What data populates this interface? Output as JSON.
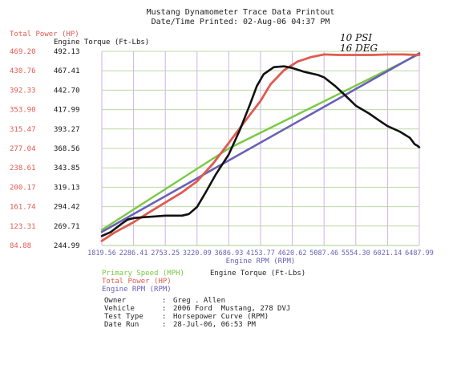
{
  "header": {
    "title": "Mustang Dynamometer Trace Data Printout",
    "printed": "Date/Time Printed: 02-Aug-06 04:37 PM"
  },
  "annotation": {
    "line1": "10 PSI",
    "line2": "16 DEG"
  },
  "colors": {
    "power": "#e05a50",
    "torque": "#111111",
    "speed": "#7ac943",
    "rpm": "#6a60b8",
    "grid_h": "#bcd8a4",
    "grid_v": "#d3b2e6"
  },
  "chart_data": {
    "type": "line",
    "x_axis_label": "Engine RPM (RPM)",
    "x_ticks": [
      "1819.56",
      "2286.41",
      "2753.25",
      "3220.09",
      "3686.93",
      "4153.77",
      "4620.62",
      "5087.46",
      "5554.30",
      "6021.14",
      "6487.99"
    ],
    "xlim": [
      1819.56,
      6487.99
    ],
    "left_axis": {
      "label": "Total Power (HP)",
      "ticks": [
        "469.20",
        "430.76",
        "392.33",
        "353.90",
        "315.47",
        "277.04",
        "238.61",
        "200.17",
        "161.74",
        "123.31",
        "84.88"
      ],
      "ylim": [
        84.88,
        469.2
      ]
    },
    "right_axis": {
      "label": "Engine Torque (Ft-Lbs)",
      "ticks": [
        "492.13",
        "467.41",
        "442.70",
        "417.99",
        "393.27",
        "368.56",
        "343.85",
        "319.13",
        "294.42",
        "269.71",
        "244.99"
      ],
      "ylim": [
        244.99,
        492.13
      ]
    },
    "series": [
      {
        "name": "Total Power (HP)",
        "axis": "left",
        "x": [
          1819.56,
          2000,
          2286,
          2500,
          2753,
          3000,
          3220,
          3450,
          3687,
          3920,
          4154,
          4300,
          4500,
          4700,
          4900,
          5087,
          5300,
          5554,
          5800,
          6021,
          6250,
          6488
        ],
        "y": [
          94,
          110,
          131,
          149,
          170,
          190,
          212,
          246,
          288,
          330,
          371,
          404,
          432,
          449,
          458,
          463,
          462,
          462,
          462,
          463,
          463,
          462
        ]
      },
      {
        "name": "Engine Torque (Ft-Lbs)",
        "axis": "right",
        "x": [
          1819.56,
          1950,
          2100,
          2200,
          2300,
          2450,
          2600,
          2753,
          2850,
          3000,
          3100,
          3220,
          3350,
          3500,
          3687,
          3850,
          4000,
          4100,
          4200,
          4350,
          4500,
          4620,
          4800,
          5000,
          5087,
          5250,
          5400,
          5554,
          5750,
          5900,
          6021,
          6200,
          6350,
          6420,
          6460,
          6488
        ],
        "y": [
          257,
          262,
          272,
          278,
          280,
          281,
          282,
          283,
          283,
          283,
          285,
          294,
          313,
          336,
          361,
          392,
          425,
          448,
          463,
          472,
          473,
          471,
          466,
          462,
          459,
          448,
          436,
          423,
          413,
          404,
          397,
          390,
          382,
          374,
          372,
          370
        ]
      },
      {
        "name": "Primary Speed (MPH)",
        "axis": "none",
        "x": [
          1819.56,
          3686.93,
          6487.99
        ],
        "y_frac": [
          0.08,
          0.5,
          0.985
        ]
      },
      {
        "name": "Engine RPM (RPM)",
        "axis": "none",
        "x": [
          1819.56,
          6487.99
        ],
        "y_frac": [
          0.07,
          0.99
        ]
      }
    ]
  },
  "legend": {
    "primary_speed": "Primary Speed (MPH)",
    "total_power": "Total Power (HP)",
    "engine_rpm": "Engine RPM (RPM)",
    "engine_torque": "Engine Torque (Ft-Lbs)"
  },
  "info": [
    {
      "key": "Owner",
      "value": "Greg . Allen"
    },
    {
      "key": "Vehicle",
      "value": "2006 Ford  Mustang, 278 DVJ"
    },
    {
      "key": "Test Type",
      "value": "Horsepower Curve (RPM)"
    },
    {
      "key": "Date Run",
      "value": "28-Jul-06, 06:53 PM"
    }
  ]
}
